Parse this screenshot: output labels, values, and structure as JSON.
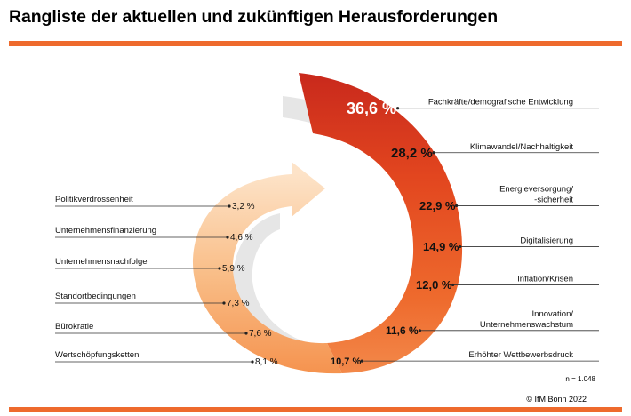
{
  "title": "Rangliste der aktuellen und zukünftigen Herausforderungen",
  "sample_size": "n = 1.048",
  "source": "© IfM Bonn 2022",
  "colors": {
    "accent": "#ee6a2d",
    "dark_red": "#c8281c",
    "pale": "#fde3c8",
    "shadow": "#e6e6e6"
  },
  "chart_data": {
    "type": "bar",
    "title": "Rangliste der aktuellen und zukünftigen Herausforderungen",
    "unit": "%",
    "categories": [
      "Fachkräfte/demografische Entwicklung",
      "Klimawandel/Nachhaltigkeit",
      "Energieversorgung/-sicherheit",
      "Digitalisierung",
      "Inflation/Krisen",
      "Innovation/Unternehmenswachstum",
      "Erhöhter Wettbewerbsdruck",
      "Wertschöpfungsketten",
      "Bürokratie",
      "Standortbedingungen",
      "Unternehmensnachfolge",
      "Unternehmensfinanzierung",
      "Politikverdrossenheit"
    ],
    "values": [
      36.6,
      28.2,
      22.9,
      14.9,
      12.0,
      11.6,
      10.7,
      8.1,
      7.6,
      7.3,
      5.9,
      4.6,
      3.2
    ],
    "value_labels": [
      "36,6 %",
      "28,2 %",
      "22,9 %",
      "14,9 %",
      "12,0 %",
      "11,6 %",
      "10,7 %",
      "8,1 %",
      "7,6 %",
      "7,3 %",
      "5,9 %",
      "4,6 %",
      "3,2 %"
    ],
    "label_lines": [
      [
        "Fachkräfte/demografische Entwicklung"
      ],
      [
        "Klimawandel/Nachhaltigkeit"
      ],
      [
        "Energieversorgung/",
        "-sicherheit"
      ],
      [
        "Digitalisierung"
      ],
      [
        "Inflation/Krisen"
      ],
      [
        "Innovation/",
        "Unternehmenswachstum"
      ],
      [
        "Erhöhter Wettbewerbsdruck"
      ],
      [
        "Wertschöpfungsketten"
      ],
      [
        "Bürokratie"
      ],
      [
        "Standortbedingungen"
      ],
      [
        "Unternehmensnachfolge"
      ],
      [
        "Unternehmensfinanzierung"
      ],
      [
        "Politikverdrossenheit"
      ]
    ],
    "label_side": [
      "right",
      "right",
      "right",
      "right",
      "right",
      "right",
      "right",
      "left",
      "left",
      "left",
      "left",
      "left",
      "left"
    ]
  }
}
